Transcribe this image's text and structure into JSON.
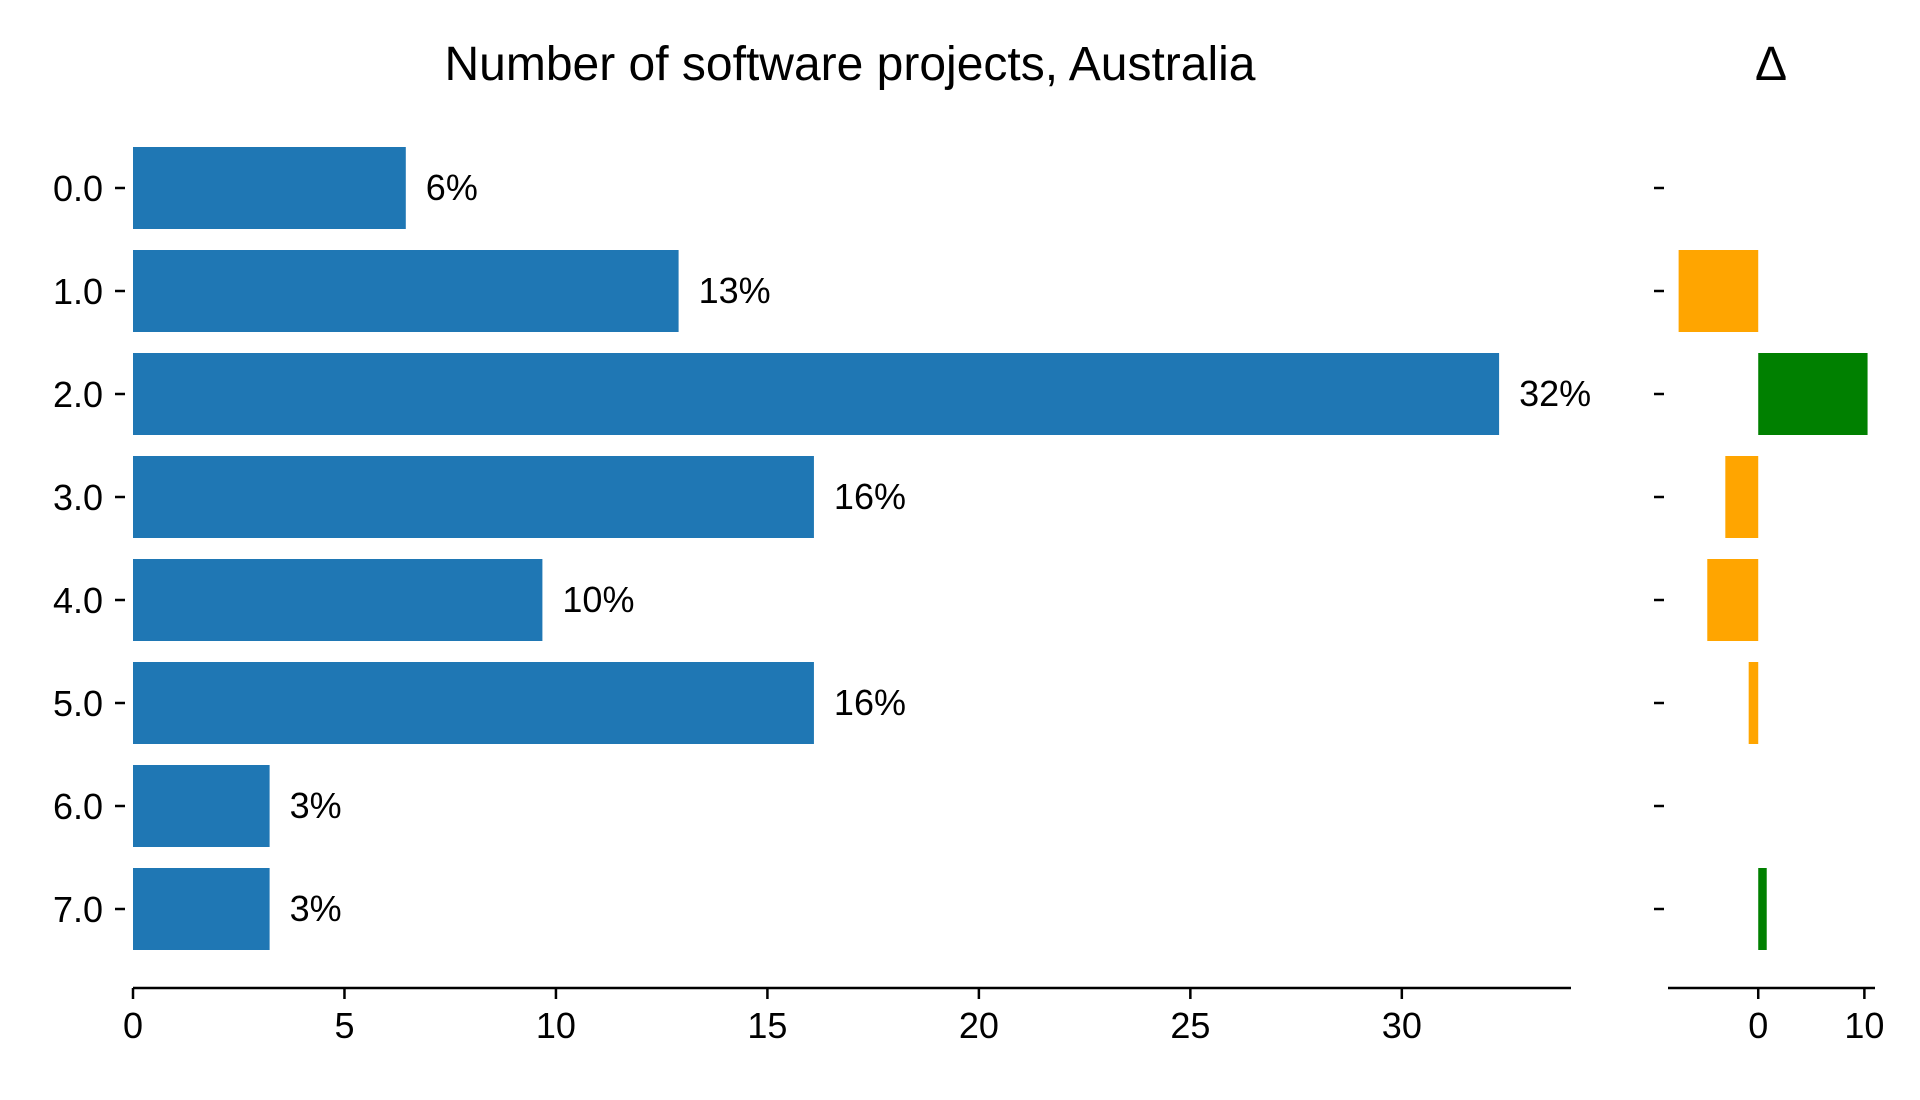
{
  "chart_data": [
    {
      "type": "bar",
      "orientation": "horizontal",
      "title": "Number of software projects, Australia",
      "xlabel": "",
      "ylabel": "",
      "categories": [
        "0.0",
        "1.0",
        "2.0",
        "3.0",
        "4.0",
        "5.0",
        "6.0",
        "7.0"
      ],
      "values": [
        6.45,
        12.9,
        32.3,
        16.1,
        9.68,
        16.1,
        3.23,
        3.23
      ],
      "data_labels": [
        "6%",
        "13%",
        "32%",
        "16%",
        "10%",
        "16%",
        "3%",
        "3%"
      ],
      "xlim": [
        0,
        34
      ],
      "xticks": [
        0,
        5,
        10,
        15,
        20,
        25,
        30
      ],
      "xtick_labels": [
        "0",
        "5",
        "10",
        "15",
        "20",
        "25",
        "30"
      ],
      "bar_color": "#1f77b4",
      "grid": false,
      "legend": "none"
    },
    {
      "type": "bar",
      "orientation": "horizontal",
      "title": "Δ",
      "xlabel": "",
      "ylabel": "",
      "categories": [
        "0.0",
        "1.0",
        "2.0",
        "3.0",
        "4.0",
        "5.0",
        "6.0",
        "7.0"
      ],
      "values": [
        0,
        -7.5,
        10.3,
        -3.1,
        -4.8,
        -0.9,
        0,
        0.8
      ],
      "xlim": [
        -8.5,
        11
      ],
      "xticks": [
        0,
        10
      ],
      "xtick_labels": [
        "0",
        "10"
      ],
      "positive_color": "#008000",
      "negative_color": "#ffa500",
      "grid": false,
      "legend": "none"
    }
  ]
}
